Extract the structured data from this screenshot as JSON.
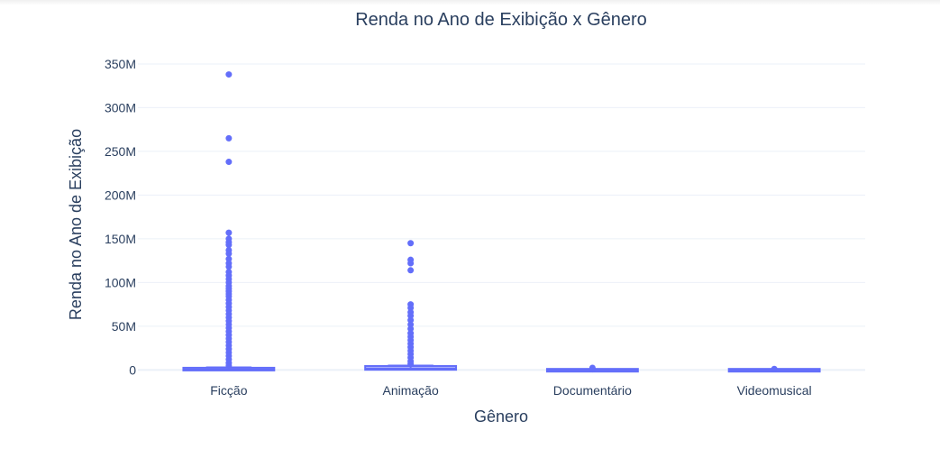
{
  "chart_data": {
    "type": "box",
    "title": "Renda no Ano de Exibição x Gênero",
    "xlabel": "Gênero",
    "ylabel": "Renda no Ano de Exibição",
    "categories": [
      "Ficção",
      "Animação",
      "Documentário",
      "Videomusical"
    ],
    "ylim": [
      -12,
      352
    ],
    "yticks": [
      0,
      50,
      100,
      150,
      200,
      250,
      300,
      350
    ],
    "ytick_labels": [
      "0",
      "50M",
      "100M",
      "150M",
      "200M",
      "250M",
      "300M",
      "350M"
    ],
    "y_unit_multiplier": 1000000,
    "color": "#636efa",
    "grid": true,
    "boxes": [
      {
        "name": "Ficção",
        "q1": 0.1,
        "median": 0.5,
        "q3": 1.5,
        "upper_fence": 3,
        "outliers": [
          338,
          265,
          238,
          157,
          150,
          146,
          143,
          137,
          133,
          127,
          122,
          118,
          112,
          108,
          104,
          100,
          96,
          93,
          90,
          87,
          84,
          80,
          76,
          72,
          68,
          64,
          60,
          56,
          52,
          48,
          44,
          40,
          36,
          32,
          28,
          24,
          20,
          16,
          12,
          8,
          5
        ]
      },
      {
        "name": "Animação",
        "q1": 0.2,
        "median": 1.5,
        "q3": 3.5,
        "upper_fence": 5,
        "outliers": [
          145,
          126,
          122,
          114,
          75,
          71,
          66,
          62,
          57,
          52,
          47,
          42,
          38,
          34,
          30,
          26,
          22,
          18,
          14,
          10,
          7
        ]
      },
      {
        "name": "Documentário",
        "q1": 0,
        "median": 0.05,
        "q3": 0.2,
        "upper_fence": 0.5,
        "outliers": [
          2.5,
          1.5,
          0.8
        ]
      },
      {
        "name": "Videomusical",
        "q1": 0,
        "median": 0.05,
        "q3": 0.2,
        "upper_fence": 0.4,
        "outliers": [
          1.2
        ]
      }
    ]
  }
}
